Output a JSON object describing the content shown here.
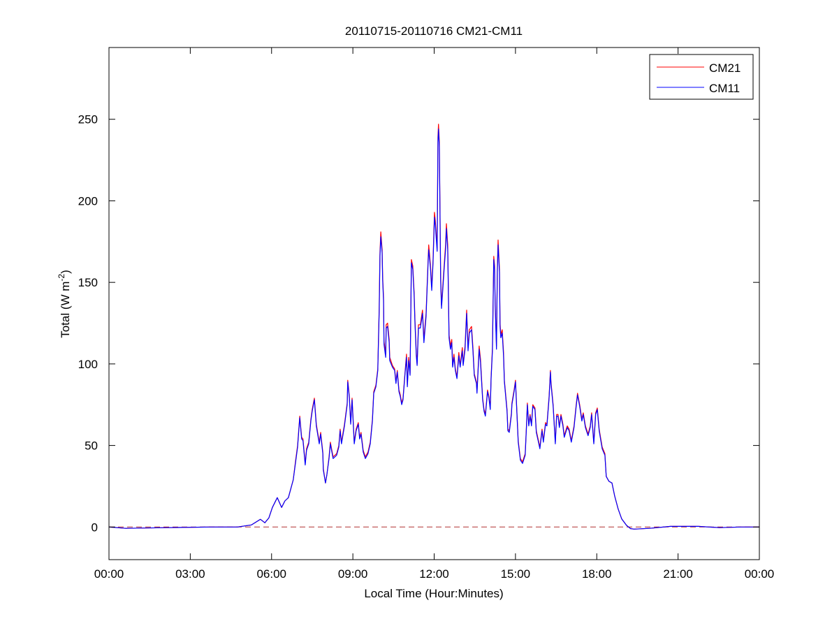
{
  "chart_data": {
    "type": "line",
    "title": "20110715-20110716 CM21-CM11",
    "xlabel": "Local Time (Hour:Minutes)",
    "ylabel": {
      "main": "Total (W m",
      "superscript": "-2",
      "close": ")"
    },
    "xlim": [
      0,
      24
    ],
    "ylim": [
      -20,
      294
    ],
    "x_ticks": [
      0,
      3,
      6,
      9,
      12,
      15,
      18,
      21,
      24
    ],
    "x_tick_labels": [
      "00:00",
      "03:00",
      "06:00",
      "09:00",
      "12:00",
      "15:00",
      "18:00",
      "21:00",
      "00:00"
    ],
    "y_ticks": [
      0,
      50,
      100,
      150,
      200,
      250
    ],
    "y_tick_labels": [
      "0",
      "50",
      "100",
      "150",
      "200",
      "250"
    ],
    "grid": false,
    "legend_position": "top-right",
    "reference_line": {
      "y": 0,
      "style": "dashed",
      "color": "#b03030"
    },
    "x_unit": "hours",
    "x": [
      0,
      0.62,
      2.16,
      3.71,
      4.74,
      5.26,
      5.59,
      5.75,
      5.9,
      6.03,
      6.21,
      6.37,
      6.49,
      6.62,
      6.8,
      6.88,
      6.96,
      7.04,
      7.11,
      7.16,
      7.24,
      7.29,
      7.37,
      7.45,
      7.5,
      7.58,
      7.65,
      7.76,
      7.81,
      7.89,
      7.91,
      7.99,
      8.04,
      8.12,
      8.17,
      8.27,
      8.4,
      8.48,
      8.53,
      8.58,
      8.69,
      8.79,
      8.81,
      8.87,
      8.92,
      8.97,
      9.05,
      9.12,
      9.2,
      9.25,
      9.3,
      9.38,
      9.46,
      9.56,
      9.64,
      9.72,
      9.77,
      9.85,
      9.92,
      9.95,
      9.97,
      10.0,
      10.03,
      10.08,
      10.1,
      10.13,
      10.15,
      10.21,
      10.23,
      10.28,
      10.34,
      10.36,
      10.46,
      10.54,
      10.59,
      10.64,
      10.7,
      10.75,
      10.8,
      10.85,
      10.93,
      10.98,
      11.01,
      11.06,
      11.11,
      11.13,
      11.16,
      11.21,
      11.26,
      11.29,
      11.34,
      11.37,
      11.42,
      11.49,
      11.57,
      11.62,
      11.7,
      11.78,
      11.8,
      11.86,
      11.91,
      11.96,
      12.01,
      12.04,
      12.11,
      12.14,
      12.16,
      12.19,
      12.24,
      12.27,
      12.32,
      12.37,
      12.42,
      12.45,
      12.5,
      12.55,
      12.6,
      12.65,
      12.68,
      12.73,
      12.78,
      12.84,
      12.91,
      12.96,
      13.04,
      13.07,
      13.14,
      13.2,
      13.25,
      13.3,
      13.38,
      13.43,
      13.48,
      13.56,
      13.58,
      13.66,
      13.71,
      13.79,
      13.84,
      13.89,
      13.97,
      14.02,
      14.07,
      14.1,
      14.15,
      14.2,
      14.23,
      14.25,
      14.3,
      14.33,
      14.36,
      14.41,
      14.43,
      14.46,
      14.51,
      14.56,
      14.59,
      14.64,
      14.69,
      14.72,
      14.77,
      14.85,
      14.87,
      14.95,
      15.0,
      15.1,
      15.18,
      15.26,
      15.36,
      15.41,
      15.44,
      15.49,
      15.54,
      15.59,
      15.64,
      15.72,
      15.77,
      15.85,
      15.9,
      15.98,
      16.03,
      16.11,
      16.16,
      16.24,
      16.29,
      16.31,
      16.39,
      16.47,
      16.52,
      16.57,
      16.62,
      16.68,
      16.75,
      16.8,
      16.91,
      16.98,
      17.06,
      17.16,
      17.24,
      17.29,
      17.37,
      17.45,
      17.5,
      17.58,
      17.68,
      17.76,
      17.81,
      17.89,
      17.96,
      18.02,
      18.09,
      18.2,
      18.3,
      18.35,
      18.45,
      18.56,
      18.66,
      18.79,
      18.92,
      19.1,
      19.25,
      19.38,
      19.95,
      20.72,
      21.75,
      22.53,
      23.3,
      24
    ],
    "series": [
      {
        "name": "CM21",
        "color": "#ff0000",
        "values": [
          0,
          -0.8,
          -0.4,
          0,
          0,
          1.3,
          4.7,
          2.6,
          5.6,
          12,
          18,
          12,
          16,
          18,
          29,
          40,
          50,
          68,
          55,
          54,
          39,
          48,
          52,
          66,
          72,
          79,
          63,
          52,
          58,
          46,
          36,
          27,
          32,
          43,
          52,
          43,
          45,
          50,
          60,
          52,
          63,
          76,
          90,
          80,
          64,
          79,
          52,
          60,
          64,
          55,
          58,
          47,
          43,
          46,
          52,
          66,
          83,
          87,
          97,
          120,
          134,
          168,
          181,
          170,
          153,
          141,
          114,
          106,
          124,
          125,
          115,
          104,
          99,
          97,
          89,
          96,
          84,
          81,
          76,
          79,
          96,
          106,
          87,
          104,
          94,
          123,
          164,
          160,
          144,
          127,
          107,
          100,
          124,
          124,
          133,
          115,
          131,
          166,
          173,
          161,
          147,
          164,
          193,
          188,
          171,
          239,
          247,
          236,
          153,
          136,
          148,
          161,
          173,
          186,
          173,
          118,
          111,
          115,
          99,
          106,
          97,
          92,
          107,
          99,
          110,
          100,
          111,
          133,
          110,
          121,
          123,
          110,
          94,
          89,
          83,
          111,
          103,
          79,
          72,
          69,
          84,
          80,
          73,
          92,
          110,
          166,
          160,
          138,
          111,
          158,
          176,
          158,
          125,
          118,
          121,
          107,
          90,
          81,
          72,
          60,
          59,
          70,
          76,
          84,
          90,
          53,
          42,
          40,
          45,
          64,
          76,
          63,
          69,
          63,
          75,
          73,
          59,
          53,
          49,
          60,
          53,
          64,
          63,
          80,
          96,
          89,
          75,
          52,
          69,
          69,
          62,
          69,
          63,
          56,
          62,
          60,
          53,
          62,
          75,
          82,
          75,
          66,
          70,
          62,
          57,
          62,
          70,
          52,
          70,
          73,
          60,
          49,
          45,
          31,
          28,
          27,
          19,
          11,
          5,
          1,
          -1,
          -1.3,
          -0.8,
          0.4,
          0.4,
          -0.4,
          0,
          0
        ]
      },
      {
        "name": "CM11",
        "color": "#0000ff",
        "values": [
          0,
          -0.8,
          -0.4,
          0,
          0,
          1.3,
          4.7,
          2.6,
          5.6,
          12,
          18,
          12,
          16,
          18,
          29,
          39,
          49,
          67,
          54,
          53,
          38,
          47,
          51,
          65,
          71,
          78,
          62,
          51,
          57,
          45,
          35,
          27,
          32,
          42,
          51,
          42,
          44,
          49,
          59,
          51,
          62,
          75,
          89,
          79,
          63,
          78,
          51,
          59,
          63,
          54,
          57,
          46,
          42,
          45,
          51,
          65,
          82,
          86,
          96,
          118,
          132,
          166,
          178,
          168,
          151,
          139,
          112,
          104,
          122,
          123,
          113,
          102,
          98,
          96,
          88,
          95,
          83,
          80,
          75,
          78,
          95,
          104,
          86,
          102,
          93,
          121,
          162,
          158,
          142,
          125,
          105,
          99,
          122,
          122,
          131,
          113,
          129,
          164,
          170,
          159,
          145,
          162,
          190,
          185,
          169,
          236,
          244,
          233,
          151,
          134,
          146,
          159,
          170,
          183,
          170,
          116,
          109,
          113,
          98,
          104,
          96,
          91,
          105,
          98,
          108,
          99,
          109,
          131,
          108,
          119,
          121,
          108,
          93,
          88,
          82,
          109,
          101,
          78,
          71,
          68,
          83,
          79,
          72,
          91,
          108,
          164,
          158,
          136,
          109,
          156,
          173,
          156,
          123,
          116,
          119,
          105,
          89,
          80,
          71,
          59,
          58,
          69,
          75,
          83,
          89,
          52,
          41,
          39,
          44,
          63,
          75,
          62,
          68,
          62,
          74,
          72,
          58,
          52,
          48,
          59,
          52,
          63,
          62,
          79,
          95,
          88,
          74,
          51,
          68,
          68,
          61,
          68,
          62,
          55,
          61,
          59,
          52,
          61,
          74,
          81,
          74,
          65,
          69,
          61,
          56,
          61,
          69,
          51,
          69,
          72,
          59,
          48,
          44,
          31,
          28,
          27,
          19,
          11,
          5,
          1,
          -1,
          -1.3,
          -0.8,
          0.4,
          0.4,
          -0.4,
          0,
          0
        ]
      }
    ]
  }
}
